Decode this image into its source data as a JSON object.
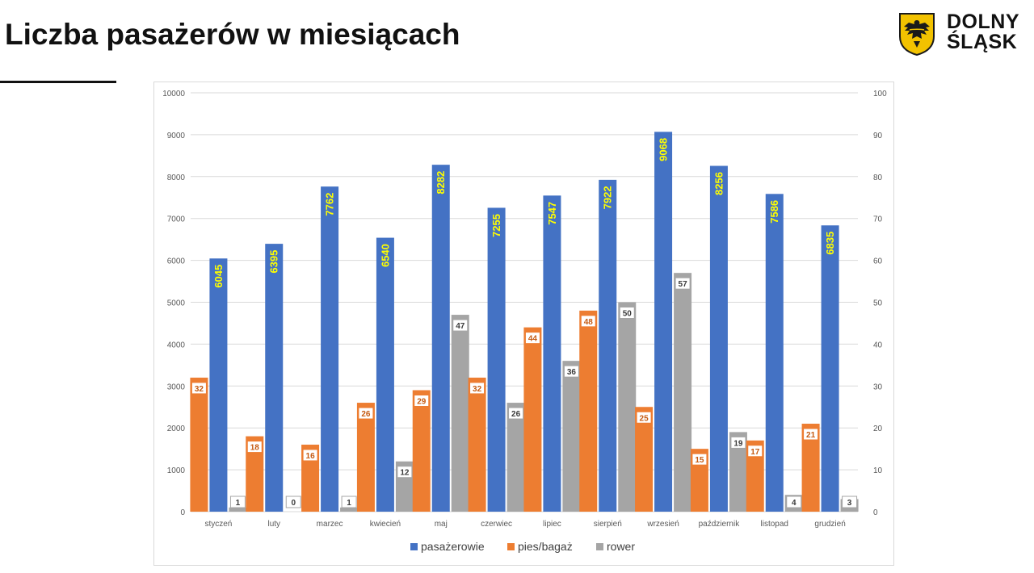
{
  "page": {
    "title": "Liczba pasażerów w miesiącach",
    "logo": {
      "line1": "DOLNY",
      "line2": "ŚLĄSK",
      "icon": "eagle-coat-of-arms-icon"
    }
  },
  "colors": {
    "pasazerowie": "#4472c4",
    "pies_bagaz": "#ed7d31",
    "rower": "#a5a5a5",
    "label_passenger_text": "#ffff00",
    "label_orange_text": "#c55a11",
    "label_gray_text": "#3a3a3a"
  },
  "chart_data": {
    "type": "bar",
    "categories": [
      "styczeń",
      "luty",
      "marzec",
      "kwiecień",
      "maj",
      "czerwiec",
      "lipiec",
      "sierpień",
      "wrzesień",
      "październik",
      "listopad",
      "grudzień"
    ],
    "series": [
      {
        "name": "pasażerowie",
        "axis": "left",
        "values": [
          6045,
          6395,
          7762,
          6540,
          8282,
          7255,
          7547,
          7922,
          9068,
          8256,
          7586,
          6835
        ]
      },
      {
        "name": "pies/bagaż",
        "axis": "right",
        "values": [
          32,
          18,
          16,
          26,
          29,
          32,
          44,
          48,
          25,
          15,
          17,
          21
        ]
      },
      {
        "name": "rower",
        "axis": "right",
        "values": [
          1,
          0,
          1,
          12,
          47,
          26,
          36,
          50,
          57,
          19,
          4,
          3
        ]
      }
    ],
    "y_left": {
      "ylim": [
        0,
        10000
      ],
      "ticks": [
        "0",
        "1000",
        "2000",
        "3000",
        "4000",
        "5000",
        "6000",
        "7000",
        "8000",
        "9000",
        "10000"
      ]
    },
    "y_right": {
      "ylim": [
        0,
        100
      ],
      "ticks": [
        "0",
        "10",
        "20",
        "30",
        "40",
        "50",
        "60",
        "70",
        "80",
        "90",
        "100"
      ]
    },
    "grid": true,
    "legend": "bottom",
    "data_labels": true
  }
}
